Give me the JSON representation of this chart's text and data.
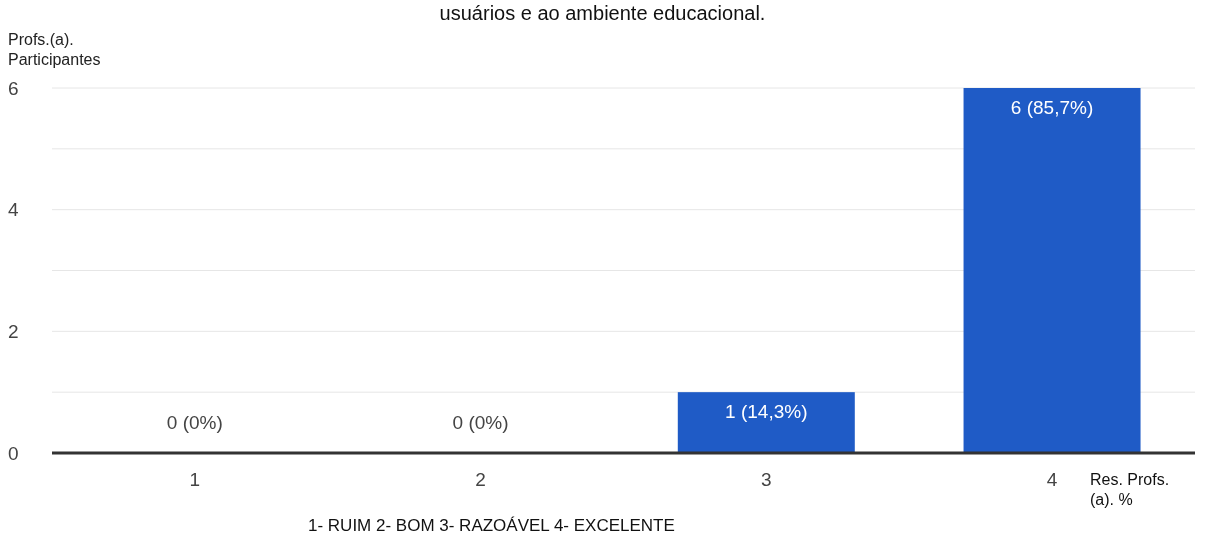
{
  "chart_data": {
    "type": "bar",
    "title": "usuários e ao ambiente educacional.",
    "ylabel": "Profs.(a). Participantes",
    "xlabel": "1- RUIM 2- BOM 3- RAZOÁVEL 4- EXCELENTE",
    "categories": [
      "1",
      "2",
      "3",
      "4"
    ],
    "values": [
      0,
      0,
      1,
      6
    ],
    "value_labels": [
      "0 (0%)",
      "0 (0%)",
      "1 (14,3%)",
      "6 (85,7%)"
    ],
    "color": "#1f5bc6",
    "ylim": [
      0,
      6
    ],
    "yticks": [
      0,
      {
        "value": 1,
        "label": null
      },
      2,
      {
        "value": 3,
        "label": null
      },
      4,
      {
        "value": 5,
        "label": null
      },
      6
    ],
    "grid": "y",
    "annotations": [
      "Res. Profs.(a). %"
    ]
  }
}
